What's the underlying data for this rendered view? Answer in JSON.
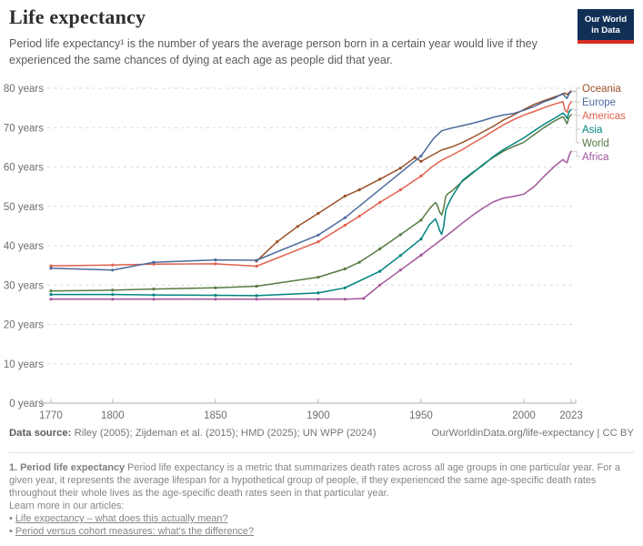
{
  "header": {
    "title": "Life expectancy",
    "subtitle": "Period life expectancy¹ is the number of years the average person born in a certain year would live if they experienced the same chances of dying at each age as people did that year.",
    "logo": {
      "line1": "Our World",
      "line2": "in Data",
      "bg_color": "#103056",
      "accent_color": "#d62d20"
    }
  },
  "chart_data": {
    "type": "line",
    "title": "Life expectancy",
    "xlabel": "",
    "ylabel": "years",
    "xlim": [
      1765,
      2025
    ],
    "ylim": [
      0,
      80
    ],
    "x_ticks": [
      1770,
      1800,
      1850,
      1900,
      1950,
      2000,
      2023
    ],
    "y_ticks": [
      0,
      10,
      20,
      30,
      40,
      50,
      60,
      70,
      80
    ],
    "y_tick_suffix": " years",
    "grid": "horizontal-dashed",
    "legend_position": "right-of-plot",
    "ui_colors": {
      "grid": "#dadada",
      "axis": "#a8a8a8",
      "tick": "#b8b8b8",
      "tick_label": "#6e6e6e",
      "legend_connector": "#c9c9c9"
    },
    "series": [
      {
        "name": "Oceania",
        "color": "#9A5129",
        "points": [
          [
            1870,
            36.1
          ],
          [
            1880,
            41.0
          ],
          [
            1890,
            44.9
          ],
          [
            1900,
            48.2
          ],
          [
            1913,
            52.6
          ],
          [
            1920,
            54.2
          ],
          [
            1930,
            56.9
          ],
          [
            1940,
            59.7
          ],
          [
            1947,
            62.4
          ],
          [
            1950,
            61.4
          ],
          [
            1955,
            62.9
          ],
          [
            1960,
            64.3
          ],
          [
            1965,
            65.1
          ],
          [
            1970,
            66.2
          ],
          [
            1975,
            67.5
          ],
          [
            1980,
            68.9
          ],
          [
            1985,
            70.3
          ],
          [
            1990,
            71.9
          ],
          [
            1995,
            73.2
          ],
          [
            2000,
            74.6
          ],
          [
            2005,
            75.9
          ],
          [
            2010,
            76.9
          ],
          [
            2015,
            77.8
          ],
          [
            2019,
            78.5
          ],
          [
            2020,
            78.8
          ],
          [
            2021,
            78.4
          ],
          [
            2022,
            78.9
          ],
          [
            2023,
            79.3
          ]
        ]
      },
      {
        "name": "Europe",
        "color": "#4C6A9C",
        "points": [
          [
            1770,
            34.3
          ],
          [
            1800,
            33.8
          ],
          [
            1820,
            35.8
          ],
          [
            1850,
            36.4
          ],
          [
            1870,
            36.3
          ],
          [
            1900,
            42.7
          ],
          [
            1913,
            47.1
          ],
          [
            1950,
            62.8
          ],
          [
            1953,
            65.0
          ],
          [
            1956,
            67.2
          ],
          [
            1960,
            69.2
          ],
          [
            1965,
            69.9
          ],
          [
            1970,
            70.5
          ],
          [
            1975,
            71.1
          ],
          [
            1980,
            71.8
          ],
          [
            1985,
            72.6
          ],
          [
            1990,
            73.2
          ],
          [
            1995,
            73.6
          ],
          [
            2000,
            74.4
          ],
          [
            2005,
            75.4
          ],
          [
            2010,
            76.6
          ],
          [
            2015,
            77.5
          ],
          [
            2019,
            78.7
          ],
          [
            2020,
            77.9
          ],
          [
            2021,
            77.4
          ],
          [
            2022,
            78.6
          ],
          [
            2023,
            79.1
          ]
        ]
      },
      {
        "name": "Americas",
        "color": "#E0614F",
        "points": [
          [
            1770,
            34.9
          ],
          [
            1800,
            35.1
          ],
          [
            1820,
            35.3
          ],
          [
            1850,
            35.4
          ],
          [
            1870,
            34.8
          ],
          [
            1900,
            41.0
          ],
          [
            1913,
            45.2
          ],
          [
            1920,
            47.5
          ],
          [
            1930,
            51.0
          ],
          [
            1940,
            54.2
          ],
          [
            1950,
            57.7
          ],
          [
            1955,
            59.9
          ],
          [
            1960,
            61.7
          ],
          [
            1965,
            63.0
          ],
          [
            1970,
            64.4
          ],
          [
            1975,
            66.0
          ],
          [
            1980,
            67.5
          ],
          [
            1985,
            69.1
          ],
          [
            1990,
            70.7
          ],
          [
            1995,
            72.0
          ],
          [
            2000,
            73.2
          ],
          [
            2005,
            74.1
          ],
          [
            2010,
            75.1
          ],
          [
            2015,
            76.0
          ],
          [
            2019,
            76.6
          ],
          [
            2020,
            74.5
          ],
          [
            2021,
            73.9
          ],
          [
            2022,
            75.7
          ],
          [
            2023,
            76.6
          ]
        ]
      },
      {
        "name": "Asia",
        "color": "#00847E",
        "points": [
          [
            1770,
            27.6
          ],
          [
            1800,
            27.6
          ],
          [
            1820,
            27.5
          ],
          [
            1850,
            27.4
          ],
          [
            1870,
            27.3
          ],
          [
            1900,
            28.0
          ],
          [
            1913,
            29.3
          ],
          [
            1930,
            33.5
          ],
          [
            1940,
            37.5
          ],
          [
            1950,
            41.7
          ],
          [
            1954,
            45.3
          ],
          [
            1957,
            46.8
          ],
          [
            1958,
            45.6
          ],
          [
            1959,
            43.9
          ],
          [
            1960,
            42.9
          ],
          [
            1961,
            44.8
          ],
          [
            1962,
            49.0
          ],
          [
            1963,
            50.3
          ],
          [
            1965,
            52.4
          ],
          [
            1970,
            56.5
          ],
          [
            1975,
            58.6
          ],
          [
            1980,
            60.4
          ],
          [
            1985,
            62.6
          ],
          [
            1990,
            64.4
          ],
          [
            1995,
            65.9
          ],
          [
            2000,
            67.4
          ],
          [
            2005,
            69.2
          ],
          [
            2010,
            70.9
          ],
          [
            2015,
            72.4
          ],
          [
            2019,
            73.7
          ],
          [
            2020,
            73.2
          ],
          [
            2021,
            72.3
          ],
          [
            2022,
            74.0
          ],
          [
            2023,
            74.6
          ]
        ]
      },
      {
        "name": "World",
        "color": "#577C44",
        "points": [
          [
            1770,
            28.5
          ],
          [
            1800,
            28.7
          ],
          [
            1820,
            29.0
          ],
          [
            1850,
            29.3
          ],
          [
            1870,
            29.7
          ],
          [
            1900,
            32.0
          ],
          [
            1913,
            34.1
          ],
          [
            1920,
            35.8
          ],
          [
            1930,
            39.2
          ],
          [
            1940,
            42.8
          ],
          [
            1950,
            46.5
          ],
          [
            1954,
            49.3
          ],
          [
            1957,
            51.0
          ],
          [
            1958,
            50.2
          ],
          [
            1959,
            48.6
          ],
          [
            1960,
            47.8
          ],
          [
            1961,
            49.5
          ],
          [
            1962,
            52.5
          ],
          [
            1963,
            53.2
          ],
          [
            1965,
            53.9
          ],
          [
            1970,
            56.3
          ],
          [
            1975,
            58.4
          ],
          [
            1980,
            60.6
          ],
          [
            1985,
            62.4
          ],
          [
            1990,
            64.0
          ],
          [
            1995,
            65.2
          ],
          [
            2000,
            66.3
          ],
          [
            2005,
            68.2
          ],
          [
            2010,
            70.1
          ],
          [
            2015,
            71.7
          ],
          [
            2019,
            72.8
          ],
          [
            2020,
            72.0
          ],
          [
            2021,
            71.0
          ],
          [
            2022,
            72.6
          ],
          [
            2023,
            73.3
          ]
        ]
      },
      {
        "name": "Africa",
        "color": "#A2559C",
        "points": [
          [
            1770,
            26.4
          ],
          [
            1800,
            26.4
          ],
          [
            1820,
            26.4
          ],
          [
            1850,
            26.4
          ],
          [
            1870,
            26.4
          ],
          [
            1900,
            26.4
          ],
          [
            1913,
            26.4
          ],
          [
            1922,
            26.6
          ],
          [
            1930,
            30.0
          ],
          [
            1940,
            33.8
          ],
          [
            1950,
            37.6
          ],
          [
            1955,
            39.6
          ],
          [
            1960,
            41.6
          ],
          [
            1965,
            43.6
          ],
          [
            1970,
            45.7
          ],
          [
            1975,
            47.7
          ],
          [
            1980,
            49.5
          ],
          [
            1985,
            51.1
          ],
          [
            1990,
            52.1
          ],
          [
            1995,
            52.5
          ],
          [
            2000,
            53.1
          ],
          [
            2005,
            55.0
          ],
          [
            2010,
            57.7
          ],
          [
            2015,
            60.2
          ],
          [
            2019,
            61.9
          ],
          [
            2020,
            61.4
          ],
          [
            2021,
            61.1
          ],
          [
            2022,
            62.9
          ],
          [
            2023,
            64.0
          ]
        ]
      }
    ]
  },
  "footer": {
    "data_source_label": "Data source:",
    "data_source": " Riley (2005); Zijdeman et al. (2015); HMD (2025); UN WPP (2024)",
    "attribution": "OurWorldinData.org/life-expectancy | CC BY"
  },
  "footnote": {
    "lead": "1. Period life expectancy",
    "body": " Period life expectancy is a metric that summarizes death rates across all age groups in one particular year. For a given year, it represents the average lifespan for a hypothetical group of people, if they experienced the same age-specific death rates throughout their whole lives as the age-specific death rates seen in that particular year.",
    "learn_more": "Learn more in our articles:",
    "bullet": "•",
    "links": [
      "Life expectancy – what does this actually mean?",
      "Period versus cohort measures: what's the difference?"
    ]
  }
}
